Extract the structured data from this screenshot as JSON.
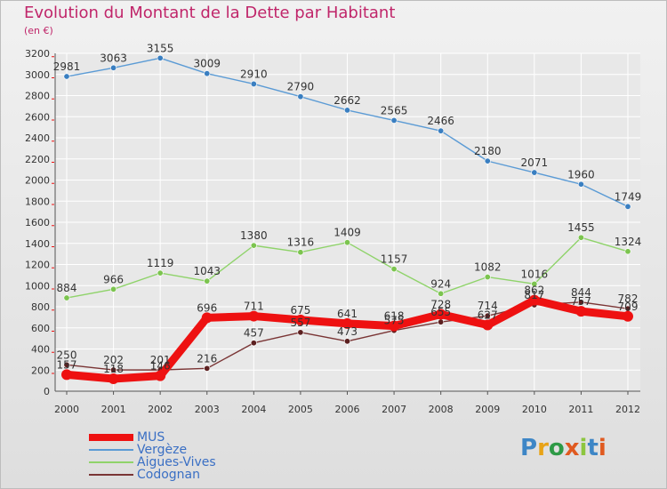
{
  "header": {
    "title": "Evolution du Montant de la Dette par Habitant",
    "subtitle": "(en €)"
  },
  "logo": {
    "letters": [
      "P",
      "r",
      "o",
      "x",
      "i",
      "t",
      "i"
    ],
    "colors": [
      "#3d86c6",
      "#e8a317",
      "#2e9a46",
      "#e05a20",
      "#8dc63f",
      "#3d86c6",
      "#e05a20"
    ]
  },
  "chart_data": {
    "type": "line",
    "x": [
      "2000",
      "2001",
      "2002",
      "2003",
      "2004",
      "2005",
      "2006",
      "2007",
      "2008",
      "2009",
      "2010",
      "2011",
      "2012"
    ],
    "ylim": [
      0,
      3200
    ],
    "yticks": [
      0,
      200,
      400,
      600,
      800,
      1000,
      1200,
      1400,
      1600,
      1800,
      2000,
      2200,
      2400,
      2600,
      2800,
      3000,
      3200
    ],
    "grid": true,
    "legend_position": "bottom-left",
    "series": [
      {
        "name": "Vergèze",
        "color": "#5b9bd5",
        "point_color": "#3a7fc1",
        "values": [
          2981,
          3063,
          3155,
          3009,
          2910,
          2790,
          2662,
          2565,
          2466,
          2180,
          2071,
          1960,
          1749
        ],
        "labels": [
          "2981",
          "3063",
          "3155",
          "3009",
          "2910",
          "2790",
          "2662",
          "2565",
          "2466",
          "2180",
          "2071",
          "1960",
          "1749"
        ]
      },
      {
        "name": "Aigues-Vives",
        "color": "#8fd36a",
        "point_color": "#7cc44f",
        "values": [
          884,
          966,
          1119,
          1043,
          1380,
          1316,
          1409,
          1157,
          924,
          1082,
          1016,
          1455,
          1324
        ],
        "labels": [
          "884",
          "966",
          "1119",
          "1043",
          "1380",
          "1316",
          "1409",
          "1157",
          "924",
          "1082",
          "1016",
          "1455",
          "1324"
        ]
      },
      {
        "name": "Codognan",
        "color": "#7a3535",
        "point_color": "#5c2020",
        "values": [
          250,
          202,
          201,
          216,
          457,
          557,
          473,
          575,
          655,
          714,
          817,
          844,
          782
        ],
        "labels": [
          "250",
          "202",
          "201",
          "216",
          "457",
          "557",
          "473",
          "575",
          "655",
          "714",
          "817",
          "844",
          "782"
        ]
      },
      {
        "name": "MUS",
        "color": "#ee1111",
        "point_color": "#ee1111",
        "values": [
          157,
          118,
          146,
          696,
          711,
          675,
          641,
          618,
          728,
          627,
          862,
          757,
          709
        ],
        "labels": [
          "157",
          "118",
          "146",
          "696",
          "711",
          "675",
          "641",
          "618",
          "728",
          "627",
          "862",
          "757",
          "709"
        ]
      }
    ]
  }
}
